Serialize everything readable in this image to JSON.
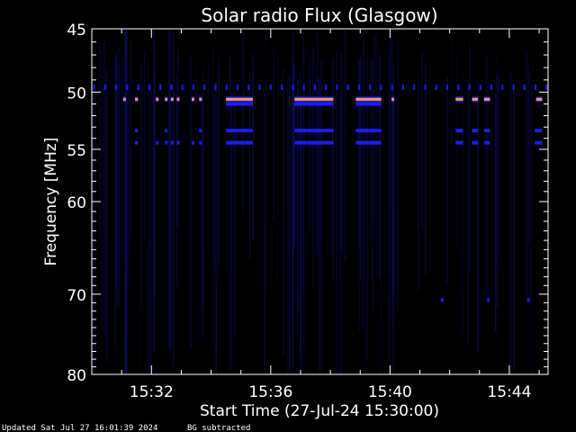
{
  "chart_data": {
    "type": "heatmap",
    "title": "Solar radio Flux (Glasgow)",
    "ylabel": "Frequency [MHz]",
    "xlabel": "Start Time (27-Jul-24 15:30:00)",
    "x_unit": "minutes after 15:30:00",
    "xlim": [
      0,
      15.3
    ],
    "ylim": [
      80,
      45
    ],
    "y_scale": "log",
    "y_ticks": [
      45,
      50,
      55,
      60,
      70,
      80
    ],
    "y_tick_labels": [
      "45",
      "50",
      "55",
      "60",
      "70",
      "80"
    ],
    "x_ticks": [
      2,
      6,
      10,
      14
    ],
    "x_tick_labels": [
      "15:32",
      "15:36",
      "15:40",
      "15:44"
    ],
    "colors": {
      "background": "#000000",
      "faint": "#0d0d6a",
      "low": "#1a1aff",
      "mid": "#d040c0",
      "high": "#ffa030"
    },
    "dashed_line_freqs": [
      49.6
    ],
    "emission_bands": [
      {
        "freq": 50.6,
        "intensity": "high",
        "intervals": [
          [
            1.05,
            1.1
          ],
          [
            1.45,
            1.55
          ],
          [
            2.15,
            2.2
          ],
          [
            2.45,
            2.5
          ],
          [
            2.65,
            2.7
          ],
          [
            2.85,
            2.9
          ],
          [
            3.35,
            3.4
          ],
          [
            3.6,
            3.65
          ],
          [
            4.5,
            5.4
          ],
          [
            6.8,
            8.1
          ],
          [
            8.85,
            9.7
          ],
          [
            10.05,
            10.1
          ],
          [
            12.2,
            12.45
          ],
          [
            12.75,
            12.95
          ],
          [
            13.15,
            13.35
          ],
          [
            14.9,
            15.1
          ]
        ]
      },
      {
        "freq": 51.0,
        "intensity": "low",
        "intervals": [
          [
            4.5,
            5.4
          ],
          [
            6.8,
            8.1
          ],
          [
            8.85,
            9.7
          ]
        ]
      },
      {
        "freq": 53.3,
        "intensity": "low",
        "intervals": [
          [
            1.45,
            1.55
          ],
          [
            2.45,
            2.5
          ],
          [
            3.6,
            3.65
          ],
          [
            4.5,
            5.4
          ],
          [
            6.8,
            8.1
          ],
          [
            8.85,
            9.7
          ],
          [
            12.2,
            12.45
          ],
          [
            12.75,
            12.95
          ],
          [
            13.15,
            13.35
          ],
          [
            14.85,
            15.1
          ]
        ]
      },
      {
        "freq": 54.4,
        "intensity": "low",
        "intervals": [
          [
            1.45,
            1.55
          ],
          [
            2.15,
            2.2
          ],
          [
            2.45,
            2.5
          ],
          [
            2.65,
            2.7
          ],
          [
            2.85,
            2.9
          ],
          [
            3.35,
            3.4
          ],
          [
            3.6,
            3.65
          ],
          [
            4.5,
            5.4
          ],
          [
            6.8,
            8.1
          ],
          [
            8.85,
            9.7
          ],
          [
            12.2,
            12.45
          ],
          [
            12.75,
            12.95
          ],
          [
            13.15,
            13.35
          ],
          [
            14.85,
            15.1
          ]
        ]
      },
      {
        "freq": 70.7,
        "intensity": "low",
        "intervals": [
          [
            11.7,
            11.75
          ],
          [
            13.25,
            13.3
          ],
          [
            14.6,
            14.65
          ]
        ]
      }
    ]
  },
  "footer": {
    "updated": "Updated Sat Jul 27 16:01:39 2024",
    "note": "BG subtracted"
  }
}
